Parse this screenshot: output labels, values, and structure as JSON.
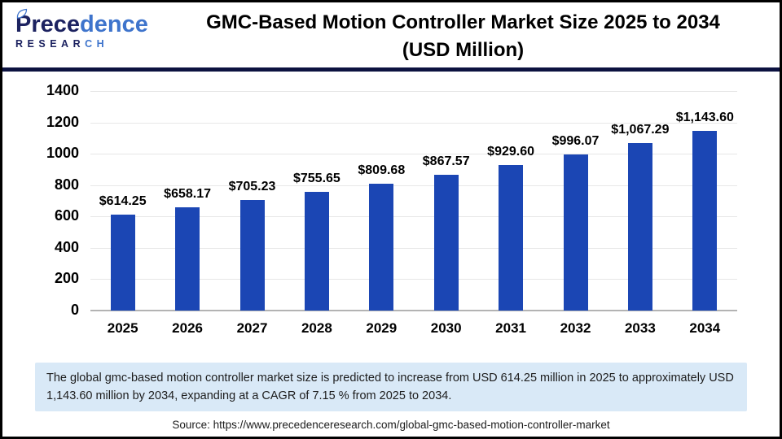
{
  "logo": {
    "precedence_dark": "Prece",
    "precedence_light": "dence",
    "research_dark": "RESEAR",
    "research_light": "CH"
  },
  "header": {
    "title_line1": "GMC-Based Motion Controller Market Size 2025 to 2034",
    "title_line2": "(USD Million)"
  },
  "chart_data": {
    "type": "bar",
    "categories": [
      "2025",
      "2026",
      "2027",
      "2028",
      "2029",
      "2030",
      "2031",
      "2032",
      "2033",
      "2034"
    ],
    "values": [
      614.25,
      658.17,
      705.23,
      755.65,
      809.68,
      867.57,
      929.6,
      996.07,
      1067.29,
      1143.6
    ],
    "value_labels": [
      "$614.25",
      "$658.17",
      "$705.23",
      "$755.65",
      "$809.68",
      "$867.57",
      "$929.60",
      "$996.07",
      "$1,067.29",
      "$1,143.60"
    ],
    "title": "GMC-Based Motion Controller Market Size 2025 to 2034 (USD Million)",
    "xlabel": "",
    "ylabel": "",
    "ylim": [
      0,
      1400
    ],
    "ytick_step": 200,
    "grid": true,
    "legend": "none",
    "bar_color": "#1b46b4"
  },
  "summary": {
    "text": "The global gmc-based motion controller market  size is predicted to increase from USD 614.25 million in 2025 to approximately USD 1,143.60 million by 2034, expanding at a CAGR of 7.15 % from 2025 to 2034."
  },
  "source": {
    "text": "Source: https://www.precedenceresearch.com/global-gmc-based-motion-controller-market"
  },
  "colors": {
    "bar": "#1b46b4",
    "divider_navy": "#0c1240",
    "summary_background": "#d9e9f7",
    "logo_dark": "#1c2260",
    "logo_light": "#3e74cc",
    "gridline": "#e7e7e7",
    "axis": "#b3b3b3"
  }
}
